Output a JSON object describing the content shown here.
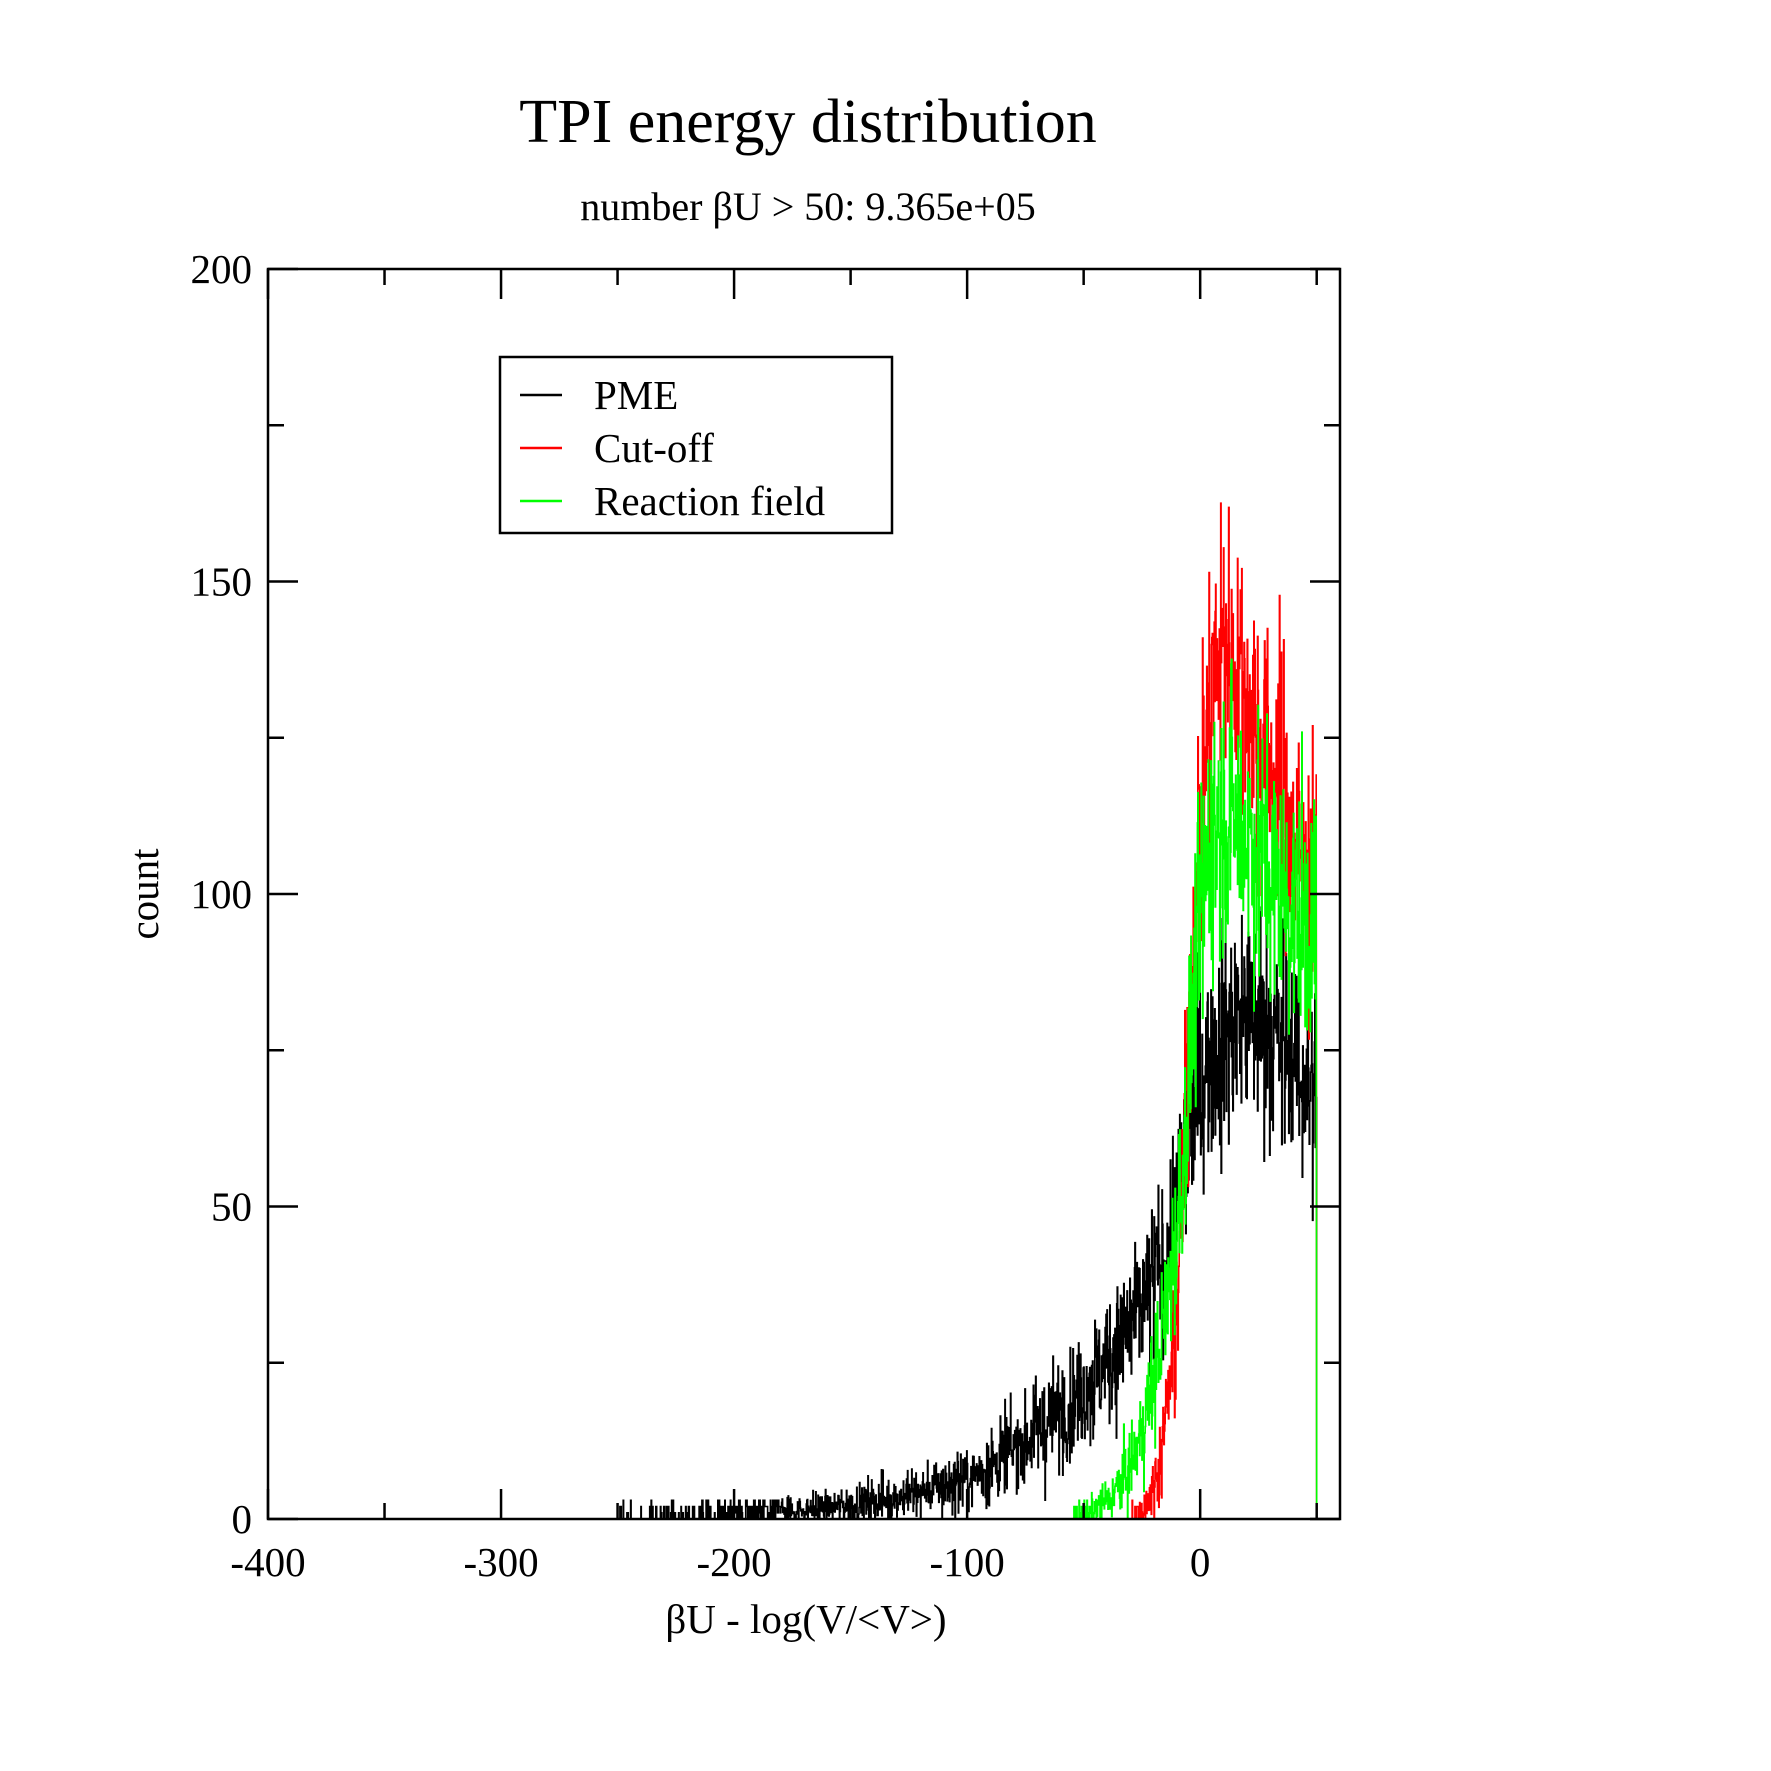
{
  "chart_data": {
    "type": "line",
    "title": "TPI energy distribution",
    "subtitle": "number βU > 50: 9.365e+05",
    "xlabel": "βU - log(V/<V>)",
    "ylabel": "count",
    "xlim": [
      -400,
      60
    ],
    "ylim": [
      0,
      200
    ],
    "xticks": [
      -400,
      -300,
      -200,
      -100,
      0
    ],
    "xtick_labels": [
      "-400",
      "-300",
      "-200",
      "-100",
      "0"
    ],
    "yticks": [
      0,
      50,
      100,
      150,
      200
    ],
    "ytick_labels": [
      "0",
      "50",
      "100",
      "150",
      "200"
    ],
    "grid": false,
    "legend_position": "top-left",
    "series": [
      {
        "name": "PME",
        "color": "#000000",
        "x": [
          -250,
          -230,
          -210,
          -200,
          -190,
          -180,
          -170,
          -160,
          -150,
          -140,
          -130,
          -120,
          -110,
          -100,
          -95,
          -90,
          -85,
          -80,
          -75,
          -70,
          -65,
          -60,
          -55,
          -50,
          -45,
          -40,
          -35,
          -30,
          -25,
          -20,
          -15,
          -10,
          -5,
          0,
          5,
          10,
          15,
          20,
          25,
          30,
          35,
          40,
          45,
          50
        ],
        "y": [
          0.3,
          0.5,
          0.6,
          0.8,
          0.9,
          1.2,
          1.5,
          1.8,
          2.3,
          2.8,
          3.5,
          4.3,
          5.3,
          6.5,
          7.5,
          8.5,
          9.8,
          11,
          12.5,
          14,
          15.5,
          17,
          19,
          21,
          23,
          25.5,
          28,
          31,
          34,
          38,
          42,
          50,
          60,
          70,
          75,
          78,
          80,
          81,
          80,
          78,
          75,
          73,
          70,
          66
        ]
      },
      {
        "name": "Cut-off",
        "color": "#ff0000",
        "x": [
          -30,
          -25,
          -20,
          -17,
          -15,
          -12,
          -10,
          -8,
          -5,
          -3,
          0,
          3,
          5,
          8,
          10,
          12,
          15,
          18,
          20,
          25,
          30,
          35,
          40,
          45,
          50
        ],
        "y": [
          0.3,
          1.5,
          5,
          10,
          16,
          25,
          35,
          50,
          75,
          95,
          112,
          125,
          133,
          138,
          140,
          139,
          137,
          134,
          130,
          126,
          121,
          116,
          110,
          104,
          100
        ]
      },
      {
        "name": "Reaction field",
        "color": "#00ff00",
        "x": [
          -55,
          -50,
          -45,
          -40,
          -35,
          -30,
          -25,
          -20,
          -15,
          -10,
          -8,
          -5,
          -3,
          0,
          3,
          5,
          8,
          10,
          15,
          20,
          25,
          30,
          35,
          40,
          45,
          50
        ],
        "y": [
          0.3,
          0.8,
          1.5,
          3,
          5,
          8.5,
          14,
          22,
          33,
          46,
          55,
          70,
          82,
          95,
          105,
          110,
          112,
          113,
          112,
          110,
          107,
          103,
          100,
          98,
          96,
          95
        ]
      }
    ]
  }
}
